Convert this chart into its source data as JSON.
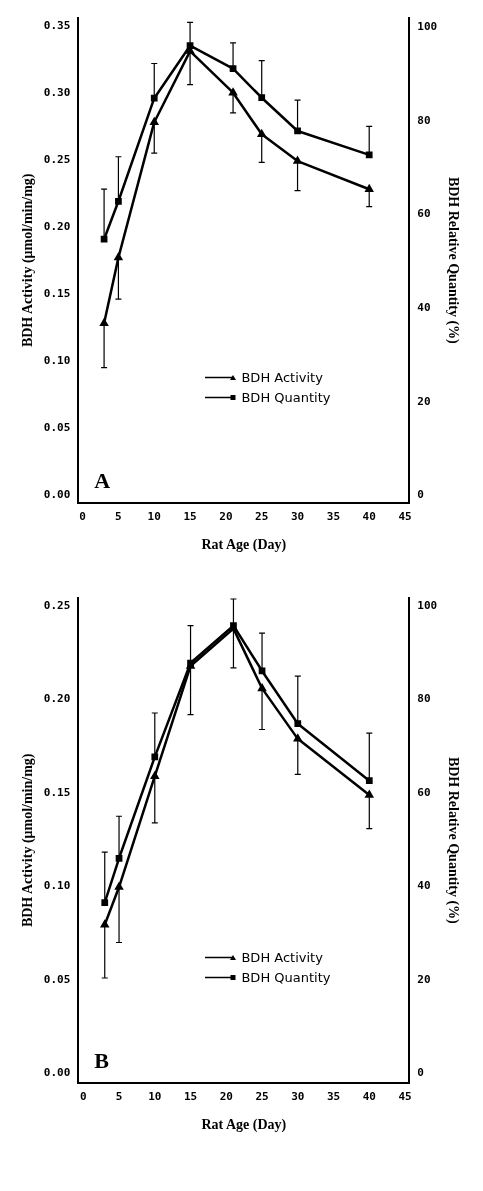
{
  "chart_data": [
    {
      "type": "line",
      "xlabel": "Rat Age (Day)",
      "ylabel": "BDH Activity (μmol/min/mg)",
      "y2label": "BDH Relative Quantity (%)",
      "annotations": [
        "A"
      ],
      "x": [
        3,
        5,
        10,
        15,
        21,
        25,
        30,
        40
      ],
      "series": [
        {
          "name": "BDH Activity",
          "color": "#000000",
          "marker": "triangle",
          "values": [
            0.128,
            0.177,
            0.278,
            0.331,
            0.3,
            0.269,
            0.249,
            0.228
          ],
          "errors": [
            [
              0.095,
              0.128
            ],
            [
              0.146,
              0.177
            ],
            [
              0.255,
              0.278
            ],
            [
              0.306,
              0.331
            ],
            [
              0.285,
              0.3
            ],
            [
              0.248,
              0.269
            ],
            [
              0.227,
              0.249
            ],
            [
              0.215,
              0.228
            ]
          ]
        },
        {
          "name": "BDH Quantity",
          "color": "#000000",
          "marker": "square",
          "axis": "y2",
          "values": [
            54.7,
            62.8,
            84.8,
            96.0,
            91.1,
            84.9,
            77.8,
            72.7
          ],
          "errors": [
            [
              54.7,
              65.4
            ],
            [
              62.8,
              72.3
            ],
            [
              84.8,
              92.2
            ],
            [
              96.0,
              101.0
            ],
            [
              91.1,
              96.6
            ],
            [
              84.9,
              92.8
            ],
            [
              77.8,
              84.4
            ],
            [
              72.7,
              78.8
            ]
          ]
        }
      ],
      "xlim": [
        -0.6,
        45.6
      ],
      "xticks": [
        0,
        5,
        10,
        15,
        20,
        25,
        30,
        35,
        40,
        45
      ],
      "ylim": [
        -0.006,
        0.356
      ],
      "yticks": [
        {
          "value": 0,
          "label": "0.00"
        },
        0.05,
        {
          "value": 0.1,
          "label": "0.10"
        },
        0.15,
        {
          "value": 0.2,
          "label": "0.20"
        },
        0.25,
        {
          "value": 0.3,
          "label": "0.30"
        },
        0.35
      ],
      "y2lim": [
        -1.6,
        102
      ],
      "y2ticks": [
        0,
        20,
        40,
        60,
        80,
        100
      ],
      "grid": false,
      "legend": "bottom",
      "line_style": "solid"
    },
    {
      "type": "line",
      "xlabel": "Rat Age (Day)",
      "ylabel": "BDH Activity (μmol/min/mg)",
      "y2label": "BDH Relative Quantity (%)",
      "annotations": [
        "B"
      ],
      "x": [
        3,
        5,
        10,
        15,
        21,
        25,
        30,
        40
      ],
      "series": [
        {
          "name": "BDH Activity",
          "color": "#000000",
          "marker": "triangle",
          "values": [
            0.0795,
            0.0997,
            0.159,
            0.218,
            0.238,
            0.206,
            0.179,
            0.149
          ],
          "errors": [
            [
              0.051,
              0.0795
            ],
            [
              0.07,
              0.0997
            ],
            [
              0.134,
              0.159
            ],
            [
              0.192,
              0.218
            ],
            [
              0.217,
              0.238
            ],
            [
              0.184,
              0.206
            ],
            [
              0.16,
              0.179
            ],
            [
              0.131,
              0.149
            ]
          ]
        },
        {
          "name": "BDH Quantity",
          "color": "#000000",
          "marker": "square",
          "axis": "y2",
          "values": [
            36.5,
            46.0,
            67.7,
            87.8,
            95.8,
            86.1,
            74.8,
            62.6
          ],
          "errors": [
            [
              36.5,
              47.3
            ],
            [
              46.0,
              55.0
            ],
            [
              67.7,
              77.1
            ],
            [
              87.8,
              95.8
            ],
            [
              95.8,
              101.5
            ],
            [
              86.1,
              94.2
            ],
            [
              74.8,
              85.0
            ],
            [
              62.6,
              72.8
            ]
          ]
        }
      ],
      "xlim": [
        -0.7,
        45.6
      ],
      "xticks": [
        0,
        5,
        10,
        15,
        20,
        25,
        30,
        35,
        40,
        45
      ],
      "ylim": [
        -0.0052,
        0.2546
      ],
      "yticks": [
        {
          "value": 0,
          "label": "0.00"
        },
        0.05,
        {
          "value": 0.1,
          "label": "0.10"
        },
        0.15,
        {
          "value": 0.2,
          "label": "0.20"
        },
        0.25
      ],
      "y2lim": [
        -2.1,
        101.8
      ],
      "y2ticks": [
        0,
        20,
        40,
        60,
        80,
        100
      ],
      "grid": false,
      "legend": "bottom",
      "line_style": "solid"
    }
  ]
}
